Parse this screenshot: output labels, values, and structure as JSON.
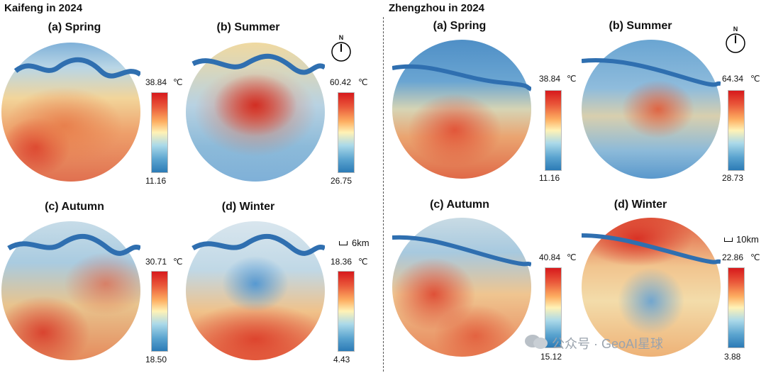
{
  "cities": [
    {
      "title": "Kaifeng in 2024",
      "scale_bar": "6km",
      "panels": [
        {
          "label": "(a) Spring",
          "max": "38.84",
          "min": "11.16",
          "unit": "℃"
        },
        {
          "label": "(b) Summer",
          "max": "60.42",
          "min": "26.75",
          "unit": "℃"
        },
        {
          "label": "(c) Autumn",
          "max": "30.71",
          "min": "18.50",
          "unit": "℃"
        },
        {
          "label": "(d) Winter",
          "max": "18.36",
          "min": "4.43",
          "unit": "℃"
        }
      ]
    },
    {
      "title": "Zhengzhou in 2024",
      "scale_bar": "10km",
      "panels": [
        {
          "label": "(a) Spring",
          "max": "38.84",
          "min": "11.16",
          "unit": "℃"
        },
        {
          "label": "(b) Summer",
          "max": "64.34",
          "min": "28.73",
          "unit": "℃"
        },
        {
          "label": "(c) Autumn",
          "max": "40.84",
          "min": "15.12",
          "unit": "℃"
        },
        {
          "label": "(d) Winter",
          "max": "22.86",
          "min": "3.88",
          "unit": "℃"
        }
      ]
    }
  ],
  "north_arrow_label": "N",
  "watermark": "公众号 · GeoAI星球",
  "colors": {
    "hot": "#d7191c",
    "mid": "#fff2b6",
    "cold": "#2c7bb6",
    "river": "#2f6fb0"
  }
}
